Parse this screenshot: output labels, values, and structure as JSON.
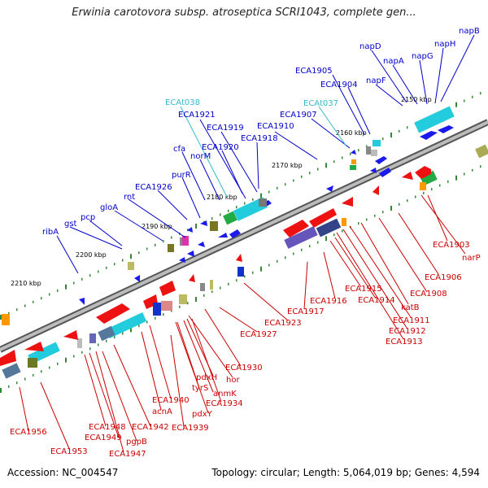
{
  "title": "Erwinia carotovora subsp. atroseptica SCRI1043, complete gen...",
  "footer": {
    "accession": "Accession: NC_004547",
    "topology": "Topology: circular; Length: 5,064,019 bp; Genes: 4,594"
  },
  "colors": {
    "forward_label": "#0000cc",
    "reverse_label": "#cc0000",
    "trna_label": "#33bbcc",
    "backbone": "#888888",
    "tick_green": "#338833"
  },
  "scale_labels": [
    "2150 kbp",
    "2160 kbp",
    "2170 kbp",
    "2180 kbp",
    "2190 kbp",
    "2200 kbp",
    "2210 kbp"
  ],
  "forward_labels": [
    "napB",
    "napH",
    "napD",
    "napG",
    "napA",
    "napF",
    "ECA1905",
    "ECA1904",
    "ECA1907",
    "ECA1910",
    "ECA1921",
    "ECA1919",
    "ECA1920",
    "ECA1918",
    "cfa",
    "norM",
    "purR",
    "ECA1926",
    "rnt",
    "gloA",
    "pcp",
    "gst",
    "ribA"
  ],
  "trna_labels": [
    "ECAt038",
    "ECAt037"
  ],
  "reverse_labels": [
    "ECA1903",
    "narP",
    "ECA1906",
    "ECA1908",
    "katB",
    "ECA1911",
    "ECA1912",
    "ECA1913",
    "ECA1914",
    "ECA1915",
    "ECA1916",
    "ECA1917",
    "ECA1923",
    "ECA1927",
    "ECA1930",
    "hor",
    "pdxH",
    "tyrS",
    "anmK",
    "ECA1934",
    "ECA1940",
    "acnA",
    "pdxY",
    "ECA1939",
    "ECA1942",
    "pgpB",
    "ECA1948",
    "ECA1949",
    "ECA1947",
    "ECA1953",
    "ECA1956"
  ]
}
